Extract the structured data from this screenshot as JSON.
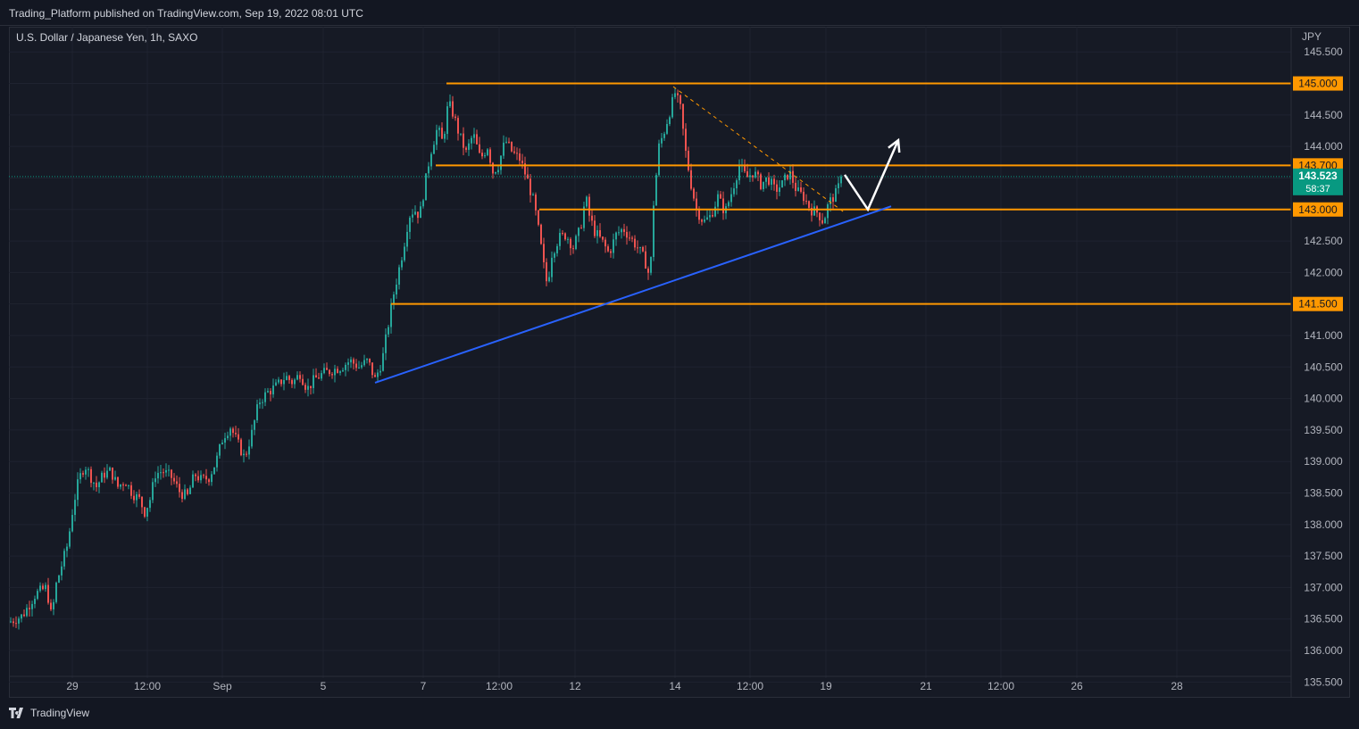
{
  "header": {
    "publish_info": "Trading_Platform published on TradingView.com, Sep 19, 2022 08:01 UTC"
  },
  "chart_info": {
    "symbol_line": "U.S. Dollar / Japanese Yen, 1h, SAXO",
    "currency": "JPY"
  },
  "footer": {
    "brand": "TradingView"
  },
  "colors": {
    "background": "#131722",
    "grid": "#1f2330",
    "candle_up": "#26a69a",
    "candle_down": "#ef5350",
    "level_line": "#ff9800",
    "trend_line": "#2962ff",
    "current_price": "#089981",
    "projection": "#ffffff"
  },
  "chart_data": {
    "type": "candlestick",
    "instrument": "U.S. Dollar / Japanese Yen",
    "timeframe": "1h",
    "source": "SAXO",
    "ylim": [
      135.25,
      145.9
    ],
    "xlim": [
      0,
      1436
    ],
    "y_ticks": [
      135.5,
      136.0,
      136.5,
      137.0,
      137.5,
      138.0,
      138.5,
      139.0,
      139.5,
      140.0,
      140.5,
      141.0,
      141.5,
      142.0,
      142.5,
      143.0,
      143.5,
      144.0,
      144.5,
      145.0,
      145.5
    ],
    "x_ticks": [
      {
        "label": "29",
        "x": 71
      },
      {
        "label": "12:00",
        "x": 155
      },
      {
        "label": "Sep",
        "x": 239
      },
      {
        "label": "5",
        "x": 352
      },
      {
        "label": "7",
        "x": 464
      },
      {
        "label": "12:00",
        "x": 549
      },
      {
        "label": "12",
        "x": 634
      },
      {
        "label": "14",
        "x": 746
      },
      {
        "label": "12:00",
        "x": 830
      },
      {
        "label": "19",
        "x": 915
      },
      {
        "label": "21",
        "x": 1027
      },
      {
        "label": "12:00",
        "x": 1111
      },
      {
        "label": "26",
        "x": 1196
      },
      {
        "label": "28",
        "x": 1308
      }
    ],
    "price_path": [
      [
        0,
        136.45
      ],
      [
        15,
        136.55
      ],
      [
        30,
        136.9
      ],
      [
        42,
        137.0
      ],
      [
        48,
        136.5
      ],
      [
        52,
        137.0
      ],
      [
        60,
        137.4
      ],
      [
        66,
        137.7
      ],
      [
        72,
        138.3
      ],
      [
        78,
        138.7
      ],
      [
        85,
        138.95
      ],
      [
        92,
        138.75
      ],
      [
        98,
        138.6
      ],
      [
        106,
        138.8
      ],
      [
        114,
        138.85
      ],
      [
        122,
        138.6
      ],
      [
        130,
        138.7
      ],
      [
        138,
        138.5
      ],
      [
        146,
        138.4
      ],
      [
        152,
        138.2
      ],
      [
        158,
        138.4
      ],
      [
        164,
        138.8
      ],
      [
        172,
        138.85
      ],
      [
        182,
        138.75
      ],
      [
        192,
        138.5
      ],
      [
        200,
        138.45
      ],
      [
        208,
        138.8
      ],
      [
        216,
        138.7
      ],
      [
        224,
        138.75
      ],
      [
        232,
        139.0
      ],
      [
        240,
        139.4
      ],
      [
        248,
        139.55
      ],
      [
        256,
        139.3
      ],
      [
        264,
        139.05
      ],
      [
        272,
        139.45
      ],
      [
        280,
        139.95
      ],
      [
        290,
        140.1
      ],
      [
        300,
        140.2
      ],
      [
        310,
        140.35
      ],
      [
        318,
        140.25
      ],
      [
        326,
        140.4
      ],
      [
        334,
        140.15
      ],
      [
        342,
        140.3
      ],
      [
        352,
        140.4
      ],
      [
        362,
        140.45
      ],
      [
        372,
        140.5
      ],
      [
        382,
        140.6
      ],
      [
        392,
        140.5
      ],
      [
        402,
        140.6
      ],
      [
        410,
        140.3
      ],
      [
        418,
        140.6
      ],
      [
        424,
        141.1
      ],
      [
        430,
        141.6
      ],
      [
        436,
        142.0
      ],
      [
        442,
        142.4
      ],
      [
        448,
        142.9
      ],
      [
        454,
        143.0
      ],
      [
        460,
        142.9
      ],
      [
        466,
        143.4
      ],
      [
        472,
        143.9
      ],
      [
        480,
        144.3
      ],
      [
        486,
        144.05
      ],
      [
        492,
        144.7
      ],
      [
        498,
        144.5
      ],
      [
        504,
        144.2
      ],
      [
        512,
        143.9
      ],
      [
        520,
        144.2
      ],
      [
        528,
        143.8
      ],
      [
        536,
        144.0
      ],
      [
        542,
        143.6
      ],
      [
        548,
        143.7
      ],
      [
        556,
        144.1
      ],
      [
        564,
        143.9
      ],
      [
        572,
        143.8
      ],
      [
        580,
        143.5
      ],
      [
        588,
        143.1
      ],
      [
        594,
        142.6
      ],
      [
        600,
        142.0
      ],
      [
        603,
        141.8
      ],
      [
        608,
        142.3
      ],
      [
        616,
        142.55
      ],
      [
        624,
        142.6
      ],
      [
        632,
        142.4
      ],
      [
        640,
        142.7
      ],
      [
        646,
        143.2
      ],
      [
        650,
        142.9
      ],
      [
        656,
        142.65
      ],
      [
        664,
        142.5
      ],
      [
        672,
        142.3
      ],
      [
        680,
        142.6
      ],
      [
        688,
        142.7
      ],
      [
        696,
        142.55
      ],
      [
        704,
        142.4
      ],
      [
        712,
        142.2
      ],
      [
        718,
        141.9
      ],
      [
        722,
        143.1
      ],
      [
        728,
        144.0
      ],
      [
        734,
        144.25
      ],
      [
        740,
        144.55
      ],
      [
        746,
        144.85
      ],
      [
        752,
        144.6
      ],
      [
        758,
        143.9
      ],
      [
        764,
        143.4
      ],
      [
        770,
        143.0
      ],
      [
        778,
        142.8
      ],
      [
        786,
        142.9
      ],
      [
        794,
        143.2
      ],
      [
        802,
        142.95
      ],
      [
        810,
        143.3
      ],
      [
        818,
        143.7
      ],
      [
        826,
        143.5
      ],
      [
        834,
        143.6
      ],
      [
        842,
        143.4
      ],
      [
        850,
        143.5
      ],
      [
        858,
        143.3
      ],
      [
        866,
        143.4
      ],
      [
        874,
        143.6
      ],
      [
        882,
        143.3
      ],
      [
        890,
        143.2
      ],
      [
        898,
        143.0
      ],
      [
        906,
        142.95
      ],
      [
        912,
        142.8
      ],
      [
        918,
        143.1
      ],
      [
        926,
        143.25
      ],
      [
        934,
        143.523
      ]
    ],
    "levels": [
      {
        "price": 145.0,
        "label": "145.000",
        "x_start": 490
      },
      {
        "price": 143.7,
        "label": "143.700",
        "x_start": 478
      },
      {
        "price": 143.0,
        "label": "143.000",
        "x_start": 594
      },
      {
        "price": 141.5,
        "label": "141.500",
        "x_start": 428
      }
    ],
    "trendline": {
      "start": [
        410,
        140.25
      ],
      "end": [
        988,
        143.05
      ]
    },
    "dashed_line": {
      "start": [
        744,
        144.95
      ],
      "end": [
        936,
        142.95
      ]
    },
    "projection_path": [
      [
        936,
        143.55
      ],
      [
        962,
        143.0
      ],
      [
        996,
        144.1
      ]
    ],
    "current_price": {
      "value": 143.523,
      "label": "143.523",
      "countdown": "58:37"
    }
  }
}
